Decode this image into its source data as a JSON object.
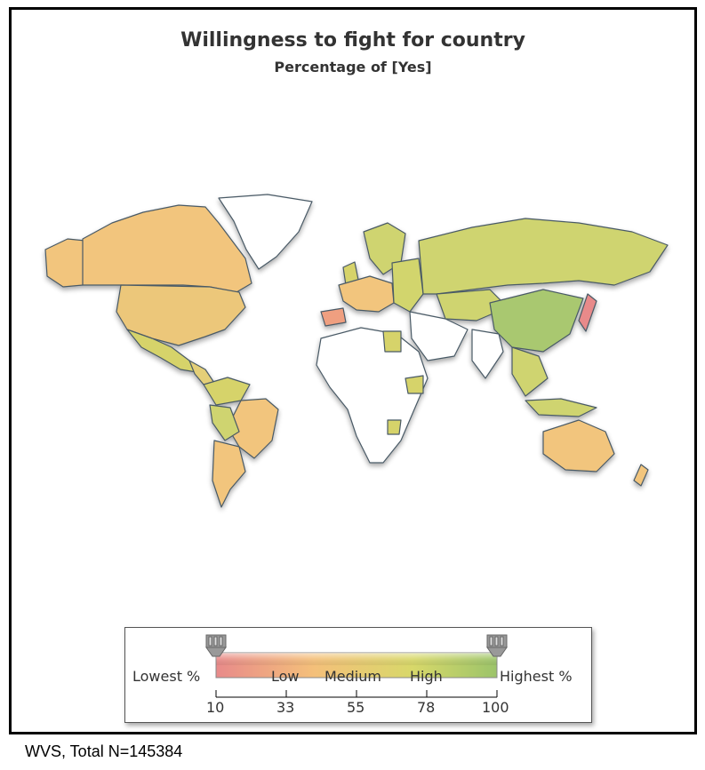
{
  "title": "Willingness to fight for country",
  "subtitle": "Percentage of [Yes]",
  "legend": {
    "lowest_label": "Lowest %",
    "highest_label": "Highest %",
    "band_labels": [
      "Low",
      "Medium",
      "High"
    ],
    "ticks": [
      "10",
      "33",
      "55",
      "78",
      "100"
    ],
    "colors": {
      "low": "#e88a8a",
      "medium": "#f4c07a",
      "high": "#d8d86a",
      "highest": "#9cc46a",
      "no_data": "#ffffff"
    }
  },
  "footer": "WVS, Total N=145384"
}
